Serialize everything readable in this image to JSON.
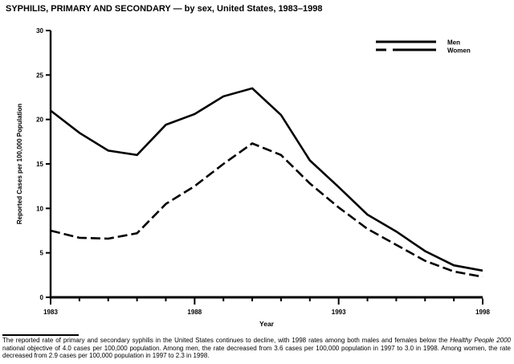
{
  "chart_data": {
    "type": "line",
    "title": "SYPHILIS, PRIMARY AND SECONDARY — by sex, United States, 1983–1998",
    "xlabel": "Year",
    "ylabel": "Reported Cases per 100,000 Population",
    "x": [
      1983,
      1984,
      1985,
      1986,
      1987,
      1988,
      1989,
      1990,
      1991,
      1992,
      1993,
      1994,
      1995,
      1996,
      1997,
      1998
    ],
    "series": [
      {
        "name": "Men",
        "style": "solid",
        "color": "#000000",
        "values": [
          21.0,
          18.5,
          16.5,
          16.0,
          19.4,
          20.6,
          22.6,
          23.5,
          20.5,
          15.4,
          12.4,
          9.3,
          7.4,
          5.2,
          3.6,
          3.0
        ]
      },
      {
        "name": "Women",
        "style": "dashed",
        "color": "#000000",
        "values": [
          7.5,
          6.7,
          6.6,
          7.2,
          10.5,
          12.5,
          15.0,
          17.3,
          16.0,
          12.8,
          10.1,
          7.7,
          5.9,
          4.1,
          2.9,
          2.3
        ]
      }
    ],
    "ylim": [
      0,
      30
    ],
    "yticks": [
      0,
      5,
      10,
      15,
      20,
      25,
      30
    ],
    "xticks_major": [
      1983,
      1988,
      1993,
      1998
    ],
    "xtick_labels": [
      "1983",
      "1988",
      "1993",
      "1998"
    ],
    "grid": "off",
    "legend_position": "top-right",
    "axis_color": "#000000",
    "background_color": "#ffffff"
  },
  "footnote": {
    "part1": "The reported rate of primary and secondary syphilis in the United States continues to decline, with 1998 rates among both males and females below the ",
    "italic": "Healthy People 2000",
    "part2": " national objective of 4.0 cases per 100,000 population. Among men, the rate decreased from 3.6 cases per 100,000 population in 1997 to 3.0 in 1998. Among women, the rate decreased from 2.9 cases per 100,000 population in 1997 to 2.3 in 1998."
  }
}
